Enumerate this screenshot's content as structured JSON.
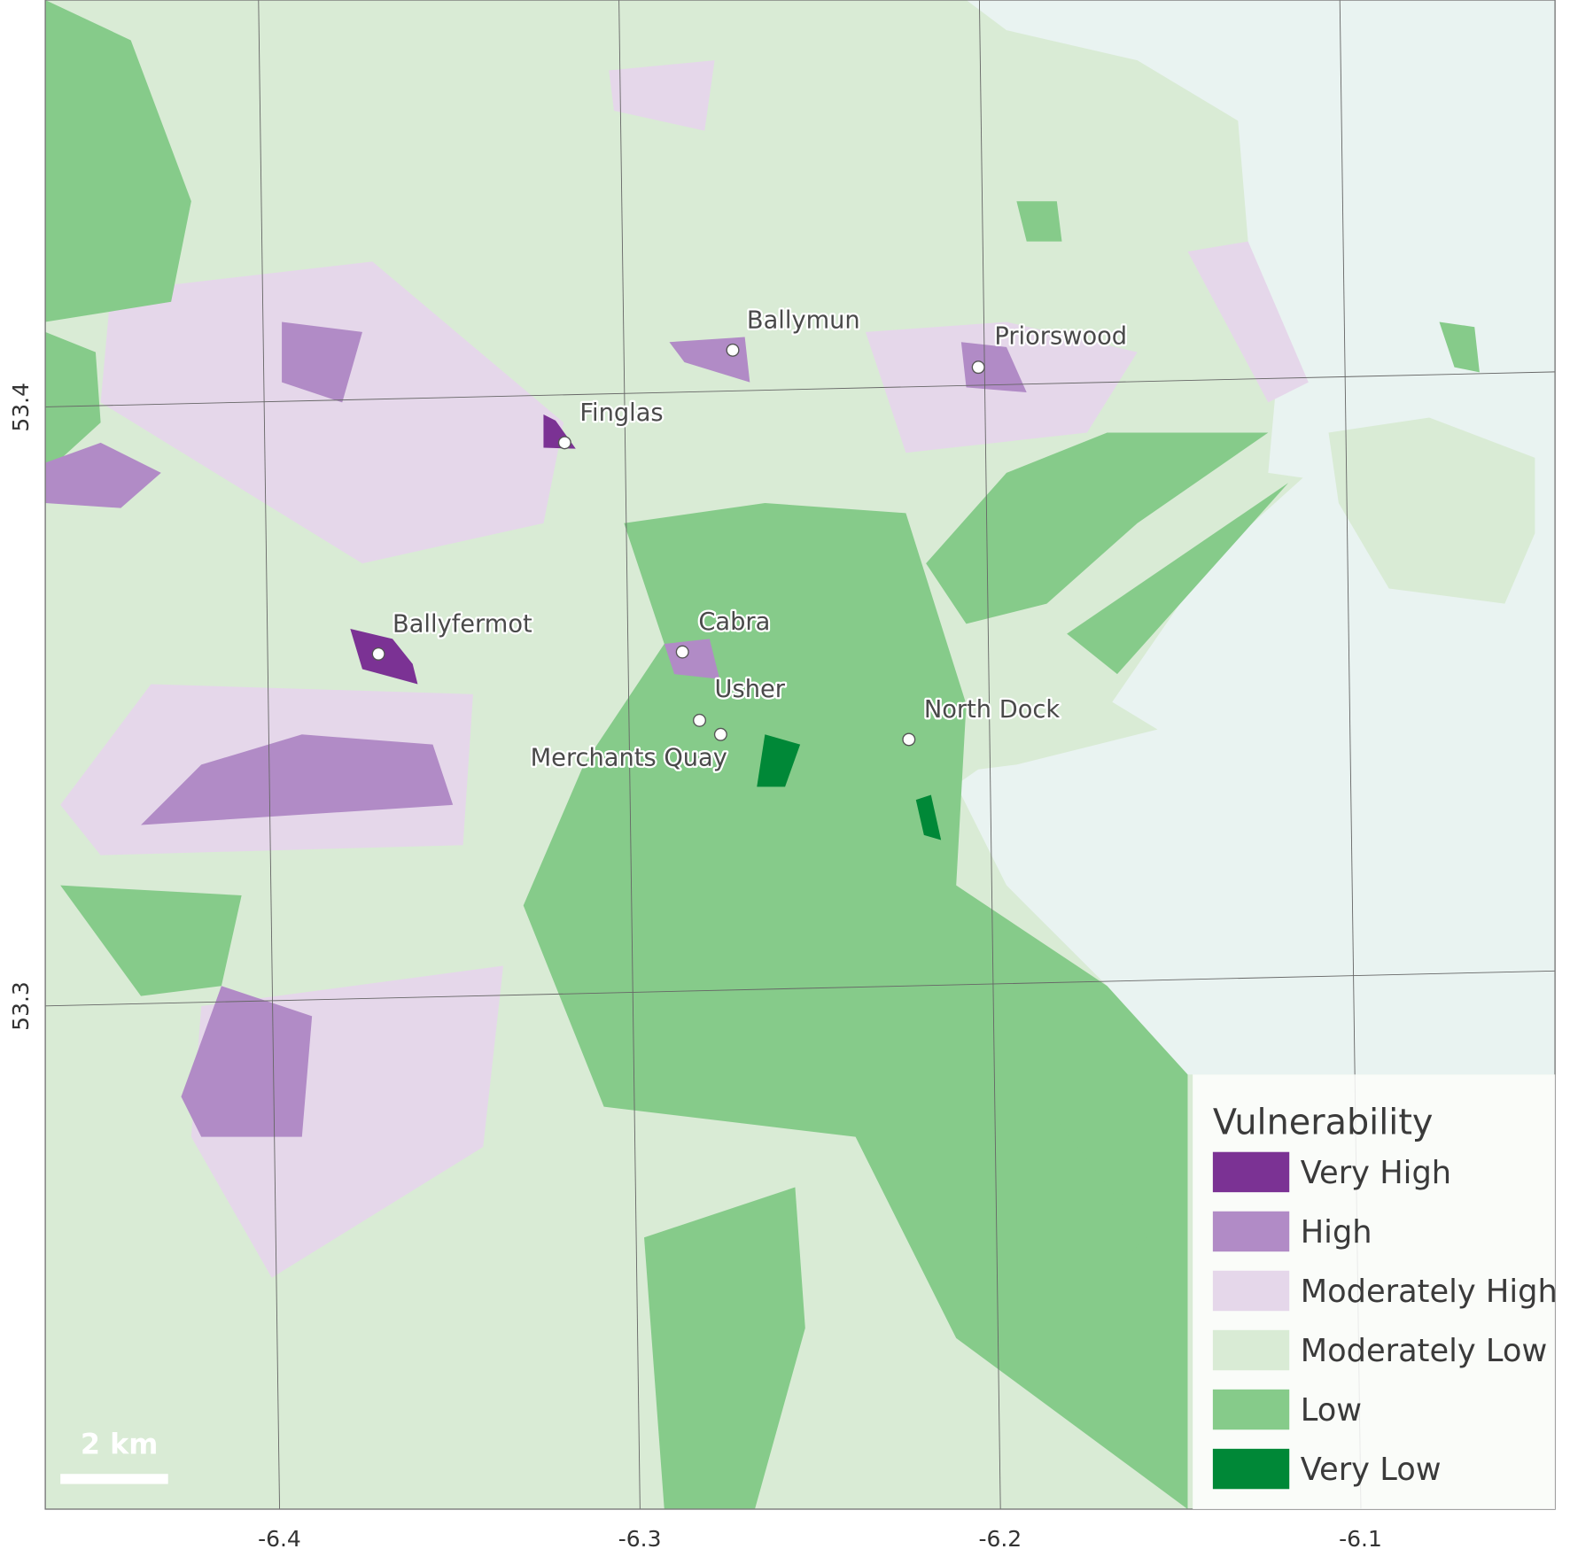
{
  "map": {
    "xlim": [
      -6.465,
      -6.046
    ],
    "ylim": [
      53.216,
      53.468
    ],
    "xticks": [
      -6.4,
      -6.3,
      -6.2,
      -6.1
    ],
    "yticks": [
      53.3,
      53.4
    ],
    "scale_bar": "2 km",
    "places": [
      "Ballymun",
      "Priorswood",
      "Finglas",
      "Ballyfermot",
      "Cabra",
      "Usher",
      "Merchants Quay",
      "North Dock"
    ],
    "legend": {
      "title": "Vulnerability",
      "items": [
        {
          "label": "Very High",
          "color": "#7b3294"
        },
        {
          "label": "High",
          "color": "#b18bc6"
        },
        {
          "label": "Moderately High",
          "color": "#e5d7ea"
        },
        {
          "label": "Moderately Low",
          "color": "#d9ebd5"
        },
        {
          "label": "Low",
          "color": "#86cb8a"
        },
        {
          "label": "Very Low",
          "color": "#008837"
        }
      ]
    }
  }
}
